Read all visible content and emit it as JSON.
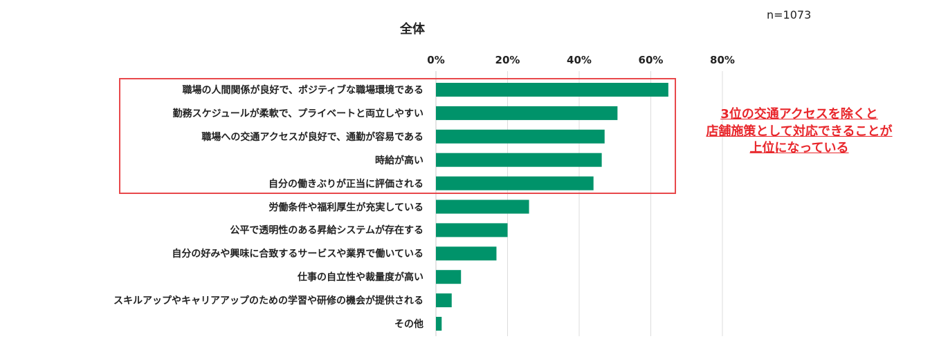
{
  "chart_data": {
    "type": "bar",
    "orientation": "horizontal",
    "title": "全体",
    "sample_size_label": "n=1073",
    "categories": [
      "職場の人間関係が良好で、ポジティブな職場環境である",
      "勤務スケジュールが柔軟で、プライベートと両立しやすい",
      "職場への交通アクセスが良好で、通勤が容易である",
      "時給が高い",
      "自分の働きぶりが正当に評価される",
      "労働条件や福利厚生が充実している",
      "公平で透明性のある昇給システムが存在する",
      "自分の好みや興味に合致するサービスや業界で働いている",
      "仕事の自立性や裁量度が高い",
      "スキルアップやキャリアアップのための学習や研修の機会が提供される",
      "その他"
    ],
    "values": [
      64.9,
      50.7,
      47.1,
      46.3,
      44.0,
      26.0,
      20.0,
      16.9,
      7.0,
      4.4,
      1.6
    ],
    "xlim": [
      0,
      80
    ],
    "ticks": [
      "0%",
      "20%",
      "40%",
      "60%",
      "80%"
    ],
    "tick_values": [
      0,
      20,
      40,
      60,
      80
    ],
    "grid": true,
    "bar_color": "#00936a",
    "highlight_color": "#e8474a",
    "highlighted_categories": 5,
    "annotation": [
      "3位の交通アクセスを除くと",
      "店舗施策として対応できることが",
      "上位になっている"
    ],
    "annotation_color": "#e8262b"
  }
}
